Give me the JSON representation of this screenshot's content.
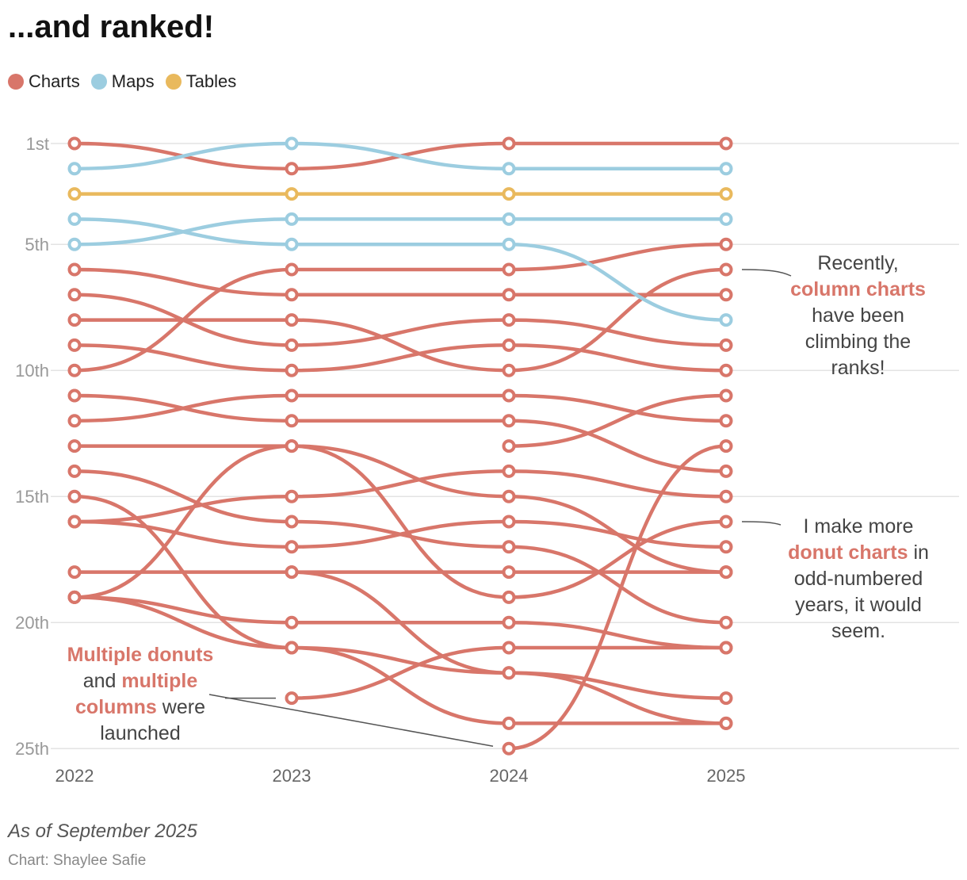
{
  "title": "...and ranked!",
  "legend": [
    {
      "label": "Charts",
      "color": "#d8766a"
    },
    {
      "label": "Maps",
      "color": "#9ccde0"
    },
    {
      "label": "Tables",
      "color": "#e9b95d"
    }
  ],
  "annotations": {
    "right_top": {
      "pre": "Recently,",
      "hl": "column charts",
      "post": "have been climbing the ranks!"
    },
    "right_mid": {
      "pre": "I make more",
      "hl": "donut charts",
      "post": "in odd-numbered years, it would seem."
    },
    "left_bottom": {
      "hl1": "Multiple donuts",
      "mid": "and",
      "hl2": "multiple columns",
      "post": "were launched"
    }
  },
  "footer": "As of September 2025",
  "credit": "Chart: Shaylee Safie",
  "chart_data": {
    "type": "line",
    "x": [
      2022,
      2023,
      2024,
      2025
    ],
    "x_tick_labels": [
      "2022",
      "2023",
      "2024",
      "2025"
    ],
    "y_ticks": [
      1,
      5,
      10,
      15,
      20,
      25
    ],
    "y_tick_labels": [
      "1st",
      "5th",
      "10th",
      "15th",
      "20th",
      "25th"
    ],
    "y_range": [
      1,
      25
    ],
    "y_reversed": true,
    "colors": {
      "Charts": "#d8766a",
      "Maps": "#9ccde0",
      "Tables": "#e9b95d"
    },
    "series": [
      {
        "category": "Charts",
        "values": [
          1,
          2,
          1,
          1
        ]
      },
      {
        "category": "Maps",
        "values": [
          2,
          1,
          2,
          2
        ]
      },
      {
        "category": "Tables",
        "values": [
          3,
          3,
          3,
          3
        ]
      },
      {
        "category": "Maps",
        "values": [
          4,
          5,
          5,
          8
        ]
      },
      {
        "category": "Maps",
        "values": [
          5,
          4,
          4,
          4
        ]
      },
      {
        "category": "Charts",
        "values": [
          6,
          7,
          7,
          7
        ]
      },
      {
        "category": "Charts",
        "values": [
          7,
          9,
          8,
          9
        ]
      },
      {
        "category": "Charts",
        "values": [
          8,
          8,
          10,
          6
        ]
      },
      {
        "category": "Charts",
        "values": [
          9,
          10,
          9,
          10
        ]
      },
      {
        "category": "Charts",
        "values": [
          10,
          6,
          6,
          5
        ]
      },
      {
        "category": "Charts",
        "values": [
          11,
          12,
          12,
          14
        ]
      },
      {
        "category": "Charts",
        "values": [
          12,
          11,
          11,
          12
        ]
      },
      {
        "category": "Charts",
        "values": [
          13,
          13,
          15,
          18
        ]
      },
      {
        "category": "Charts",
        "values": [
          14,
          16,
          17,
          20
        ]
      },
      {
        "category": "Charts",
        "values": [
          15,
          21,
          24,
          24
        ]
      },
      {
        "category": "Charts",
        "values": [
          16,
          17,
          16,
          17
        ]
      },
      {
        "category": "Charts",
        "values": [
          16,
          15,
          14,
          15
        ]
      },
      {
        "category": "Charts",
        "values": [
          18,
          18,
          18,
          18
        ]
      },
      {
        "category": "Charts",
        "values": [
          19,
          13,
          19,
          16
        ]
      },
      {
        "category": "Charts",
        "values": [
          19,
          20,
          20,
          21
        ]
      },
      {
        "category": "Charts",
        "values": [
          19,
          21,
          22,
          23
        ]
      },
      {
        "category": "Charts",
        "values": [
          null,
          18,
          22,
          24
        ]
      },
      {
        "category": "Charts",
        "values": [
          null,
          23,
          21,
          21
        ]
      },
      {
        "category": "Charts",
        "values": [
          null,
          null,
          13,
          11
        ]
      },
      {
        "category": "Charts",
        "values": [
          null,
          null,
          25,
          13
        ]
      }
    ]
  }
}
